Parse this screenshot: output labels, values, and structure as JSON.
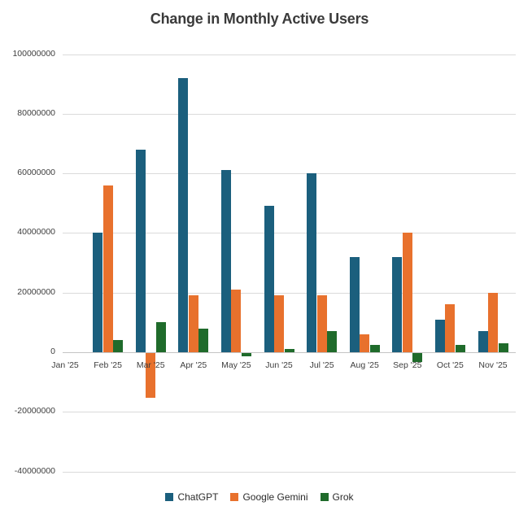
{
  "chart_data": {
    "type": "bar",
    "title": "Change in Monthly Active Users",
    "xlabel": "",
    "ylabel": "",
    "categories": [
      "Jan '25",
      "Feb '25",
      "Mar '25",
      "Apr '25",
      "May '25",
      "Jun '25",
      "Jul '25",
      "Aug '25",
      "Sep '25",
      "Oct '25",
      "Nov '25"
    ],
    "series": [
      {
        "name": "ChatGPT",
        "color": "#1b5f7d",
        "values": [
          0,
          40000000,
          68000000,
          92000000,
          61000000,
          49000000,
          60000000,
          32000000,
          32000000,
          11000000,
          7000000
        ]
      },
      {
        "name": "Google Gemini",
        "color": "#e8712d",
        "values": [
          0,
          56000000,
          -15000000,
          19000000,
          21000000,
          19000000,
          19000000,
          6000000,
          40000000,
          16000000,
          20000000
        ]
      },
      {
        "name": "Grok",
        "color": "#1f6b2b",
        "values": [
          0,
          4000000,
          10000000,
          8000000,
          -1000000,
          1000000,
          7000000,
          2500000,
          -3000000,
          2500000,
          3000000
        ]
      }
    ],
    "yticks": [
      {
        "value": 100000000,
        "label": "100000000"
      },
      {
        "value": 80000000,
        "label": "80000000"
      },
      {
        "value": 60000000,
        "label": "60000000"
      },
      {
        "value": 40000000,
        "label": "40000000"
      },
      {
        "value": 20000000,
        "label": "20000000"
      },
      {
        "value": 0,
        "label": "0"
      },
      {
        "value": -20000000,
        "label": "-20000000"
      },
      {
        "value": -40000000,
        "label": "-40000000"
      }
    ],
    "ylim": [
      -40000000,
      100000000
    ],
    "grid": "horizontal",
    "legend_position": "bottom"
  }
}
